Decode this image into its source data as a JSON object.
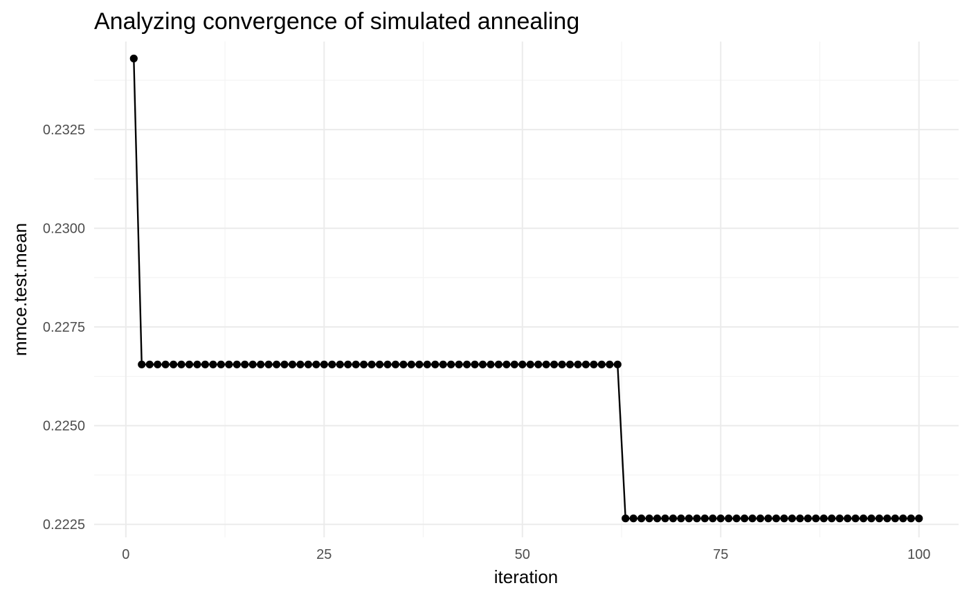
{
  "chart_data": {
    "type": "line",
    "title": "Analyzing convergence of simulated annealing",
    "xlabel": "iteration",
    "ylabel": "mmce.test.mean",
    "xlim": [
      -4,
      105
    ],
    "ylim": [
      0.22217,
      0.23473
    ],
    "x_ticks": [
      0,
      25,
      50,
      75,
      100
    ],
    "x_tick_labels": [
      "0",
      "25",
      "50",
      "75",
      "100"
    ],
    "y_ticks": [
      0.2225,
      0.225,
      0.2275,
      0.23,
      0.2325
    ],
    "y_tick_labels": [
      "0.2225",
      "0.2250",
      "0.2275",
      "0.2300",
      "0.2325"
    ],
    "grid": true,
    "legend": "none",
    "line_color": "#000000",
    "series": [
      {
        "segments": [
          {
            "x_from": 1,
            "x_to": 1,
            "y": 0.2343
          },
          {
            "x_from": 2,
            "x_to": 62,
            "y": 0.22655
          },
          {
            "x_from": 63,
            "x_to": 100,
            "y": 0.22265
          }
        ]
      }
    ]
  }
}
